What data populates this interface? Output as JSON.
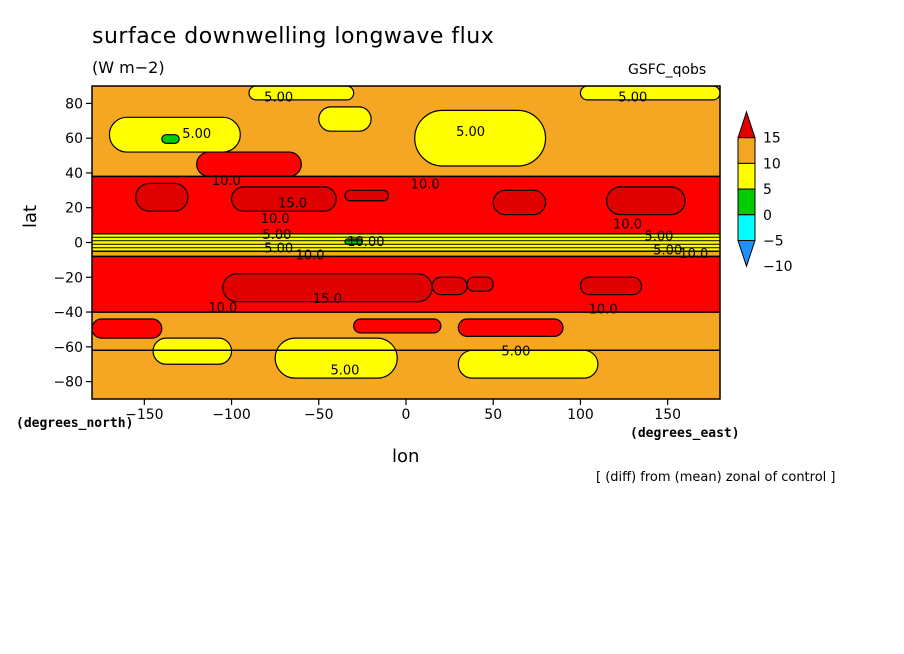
{
  "chart_data": {
    "type": "heatmap",
    "title": "surface downwelling longwave flux",
    "units": "(W m−2)",
    "model_label": "GSFC_qobs",
    "xlabel": "lon",
    "ylabel": "lat",
    "x_unit": "(degrees_east)",
    "y_unit": "(degrees_north)",
    "note": "[ (diff) from (mean) zonal of control ]",
    "xlim": [
      -180,
      180
    ],
    "ylim": [
      -90,
      90
    ],
    "x_ticks": [
      -150,
      -100,
      -50,
      0,
      50,
      100,
      150
    ],
    "y_ticks": [
      80,
      60,
      40,
      20,
      0,
      -20,
      -40,
      -60,
      -80
    ],
    "x_tick_labels": [
      "−150",
      "−100",
      "−50",
      "0",
      "50",
      "100",
      "150"
    ],
    "y_tick_labels": [
      "80",
      "60",
      "40",
      "20",
      "0",
      "−20",
      "−40",
      "−60",
      "−80"
    ],
    "colorbar": {
      "levels": [
        -10,
        -5,
        0,
        5,
        10,
        15
      ],
      "labels": [
        "−10",
        "−5",
        "0",
        "5",
        "10",
        "15"
      ],
      "colors": [
        "#1e90ff",
        "#00ffff",
        "#00cc00",
        "#ffff00",
        "#f5a623",
        "#ff0000",
        "#e00000"
      ]
    },
    "zonal_bands": [
      {
        "lat": [
          -90,
          -62
        ],
        "level": 5
      },
      {
        "lat": [
          -62,
          -40
        ],
        "level": 5
      },
      {
        "lat": [
          -40,
          -8
        ],
        "level": 10
      },
      {
        "lat": [
          -8,
          -5
        ],
        "level": 5
      },
      {
        "lat": [
          -5,
          5
        ],
        "level": 0
      },
      {
        "lat": [
          5,
          38
        ],
        "level": 10
      },
      {
        "lat": [
          38,
          90
        ],
        "level": 5
      }
    ],
    "patches": [
      {
        "lon": [
          -145,
          -100
        ],
        "lat": [
          -70,
          -55
        ],
        "level": 0
      },
      {
        "lon": [
          -75,
          -5
        ],
        "lat": [
          -78,
          -55
        ],
        "level": 0
      },
      {
        "lon": [
          30,
          110
        ],
        "lat": [
          -78,
          -62
        ],
        "level": 0
      },
      {
        "lon": [
          -105,
          15
        ],
        "lat": [
          -34,
          -18
        ],
        "level": 15
      },
      {
        "lon": [
          15,
          35
        ],
        "lat": [
          -30,
          -20
        ],
        "level": 15
      },
      {
        "lon": [
          35,
          50
        ],
        "lat": [
          -28,
          -20
        ],
        "level": 15
      },
      {
        "lon": [
          100,
          135
        ],
        "lat": [
          -30,
          -20
        ],
        "level": 15
      },
      {
        "lon": [
          -155,
          -125
        ],
        "lat": [
          18,
          34
        ],
        "level": 15
      },
      {
        "lon": [
          -100,
          -40
        ],
        "lat": [
          18,
          32
        ],
        "level": 15
      },
      {
        "lon": [
          -35,
          -10
        ],
        "lat": [
          24,
          30
        ],
        "level": 15
      },
      {
        "lon": [
          50,
          80
        ],
        "lat": [
          16,
          30
        ],
        "level": 15
      },
      {
        "lon": [
          115,
          160
        ],
        "lat": [
          16,
          32
        ],
        "level": 15
      },
      {
        "lon": [
          -170,
          -95
        ],
        "lat": [
          52,
          72
        ],
        "level": 0
      },
      {
        "lon": [
          -50,
          -20
        ],
        "lat": [
          64,
          78
        ],
        "level": 0
      },
      {
        "lon": [
          5,
          80
        ],
        "lat": [
          44,
          76
        ],
        "level": 0
      },
      {
        "lon": [
          -140,
          -130
        ],
        "lat": [
          57,
          62
        ],
        "level": -5
      },
      {
        "lon": [
          -35,
          -25
        ],
        "lat": [
          -1,
          2
        ],
        "level": -5
      },
      {
        "lon": [
          100,
          180
        ],
        "lat": [
          82,
          90
        ],
        "level": 0
      },
      {
        "lon": [
          -90,
          -30
        ],
        "lat": [
          82,
          90
        ],
        "level": 0
      },
      {
        "lon": [
          -120,
          -60
        ],
        "lat": [
          38,
          52
        ],
        "level": 10
      },
      {
        "lon": [
          -30,
          20
        ],
        "lat": [
          -52,
          -44
        ],
        "level": 10
      },
      {
        "lon": [
          30,
          90
        ],
        "lat": [
          -54,
          -44
        ],
        "level": 10
      },
      {
        "lon": [
          -180,
          -140
        ],
        "lat": [
          -55,
          -44
        ],
        "level": 10
      }
    ],
    "contour_labels": [
      {
        "text": "5.00",
        "lon": -73,
        "lat": 84
      },
      {
        "text": "5.00",
        "lon": 130,
        "lat": 84
      },
      {
        "text": "5.00",
        "lon": -120,
        "lat": 63
      },
      {
        "text": "5.00",
        "lon": 37,
        "lat": 64
      },
      {
        "text": "10.0",
        "lon": -103,
        "lat": 36
      },
      {
        "text": "10.0",
        "lon": 11,
        "lat": 34
      },
      {
        "text": "15.0",
        "lon": -65,
        "lat": 23
      },
      {
        "text": "10.0",
        "lon": -75,
        "lat": 14
      },
      {
        "text": "10.0",
        "lon": 127,
        "lat": 11
      },
      {
        "text": "5.00",
        "lon": -74,
        "lat": 5
      },
      {
        "text": "10.00",
        "lon": -23,
        "lat": 1
      },
      {
        "text": "5.00",
        "lon": 145,
        "lat": 4
      },
      {
        "text": "5.00",
        "lon": -73,
        "lat": -3
      },
      {
        "text": "10.0",
        "lon": -55,
        "lat": -7
      },
      {
        "text": "5.00",
        "lon": 150,
        "lat": -4
      },
      {
        "text": "10.0",
        "lon": 165,
        "lat": -6
      },
      {
        "text": "15.0",
        "lon": -45,
        "lat": -32
      },
      {
        "text": "10.0",
        "lon": -105,
        "lat": -37
      },
      {
        "text": "10.0",
        "lon": 113,
        "lat": -38
      },
      {
        "text": "5.00",
        "lon": 63,
        "lat": -62
      },
      {
        "text": "5.00",
        "lon": -35,
        "lat": -73
      }
    ]
  }
}
